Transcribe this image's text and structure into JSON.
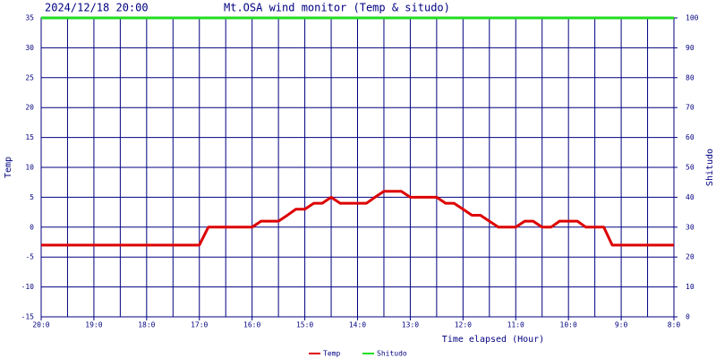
{
  "chart_data": {
    "type": "line",
    "subtitle": "2024/12/18 20:00",
    "title": "Mt.OSA wind monitor (Temp & situdo)",
    "x_label": "Time elapsed (Hour)",
    "y_label": "Temp",
    "y2_label": "Shitudo",
    "xlim": [
      0,
      12
    ],
    "xticks": [
      {
        "value": 0,
        "label": "20:0"
      },
      {
        "value": 1,
        "label": "19:0"
      },
      {
        "value": 2,
        "label": "18:0"
      },
      {
        "value": 3,
        "label": "17:0"
      },
      {
        "value": 4,
        "label": "16:0"
      },
      {
        "value": 5,
        "label": "15:0"
      },
      {
        "value": 6,
        "label": "14:0"
      },
      {
        "value": 7,
        "label": "13:0"
      },
      {
        "value": 8,
        "label": "12:0"
      },
      {
        "value": 9,
        "label": "11:0"
      },
      {
        "value": 10,
        "label": "10:0"
      },
      {
        "value": 11,
        "label": "9:0"
      },
      {
        "value": 12,
        "label": "8:0"
      }
    ],
    "xticks_minor": [
      0.5,
      1.5,
      2.5,
      3.5,
      4.5,
      5.5,
      6.5,
      7.5,
      8.5,
      9.5,
      10.5,
      11.5
    ],
    "ylim": [
      -15,
      35
    ],
    "yticks": [
      -15,
      -10,
      -5,
      0,
      5,
      10,
      15,
      20,
      25,
      30,
      35
    ],
    "y2lim": [
      0,
      100
    ],
    "y2ticks": [
      0,
      10,
      20,
      30,
      40,
      50,
      60,
      70,
      80,
      90,
      100
    ],
    "grid": true,
    "legend": "bottom",
    "x": [
      0,
      0.17,
      0.33,
      0.5,
      0.67,
      0.83,
      1,
      1.17,
      1.33,
      1.5,
      1.67,
      1.83,
      2,
      2.17,
      2.33,
      2.5,
      2.67,
      2.83,
      3,
      3.17,
      3.33,
      3.5,
      3.67,
      3.83,
      4,
      4.17,
      4.33,
      4.5,
      4.67,
      4.83,
      5,
      5.17,
      5.33,
      5.5,
      5.67,
      5.83,
      6,
      6.17,
      6.33,
      6.5,
      6.67,
      6.83,
      7,
      7.17,
      7.33,
      7.5,
      7.67,
      7.83,
      8,
      8.17,
      8.33,
      8.5,
      8.67,
      8.83,
      9,
      9.17,
      9.33,
      9.5,
      9.67,
      9.83,
      10,
      10.17,
      10.33,
      10.5,
      10.67,
      10.83,
      11,
      11.17,
      11.33,
      11.5,
      11.67,
      11.83,
      12
    ],
    "series": [
      {
        "name": "Temp",
        "color": "#dd0000",
        "values": [
          -3,
          -3,
          -3,
          -3,
          -3,
          -3,
          -3,
          -3,
          -3,
          -3,
          -3,
          -3,
          -3,
          -3,
          -3,
          -3,
          -3,
          -3,
          -3,
          0,
          0,
          0,
          0,
          0,
          0,
          1,
          1,
          1,
          2,
          3,
          3,
          4,
          4,
          5,
          4,
          4,
          4,
          4,
          5,
          6,
          6,
          6,
          5,
          5,
          5,
          5,
          4,
          4,
          3,
          2,
          2,
          1,
          0,
          0,
          0,
          1,
          1,
          0,
          0,
          1,
          1,
          1,
          0,
          0,
          0,
          -3,
          -3,
          -3,
          -3,
          -3,
          -3,
          -3,
          -3
        ]
      },
      {
        "name": "Shitudo",
        "color": "#22dd22",
        "axis": "y2",
        "x": [
          0,
          12
        ],
        "values": [
          100,
          100
        ]
      }
    ]
  }
}
